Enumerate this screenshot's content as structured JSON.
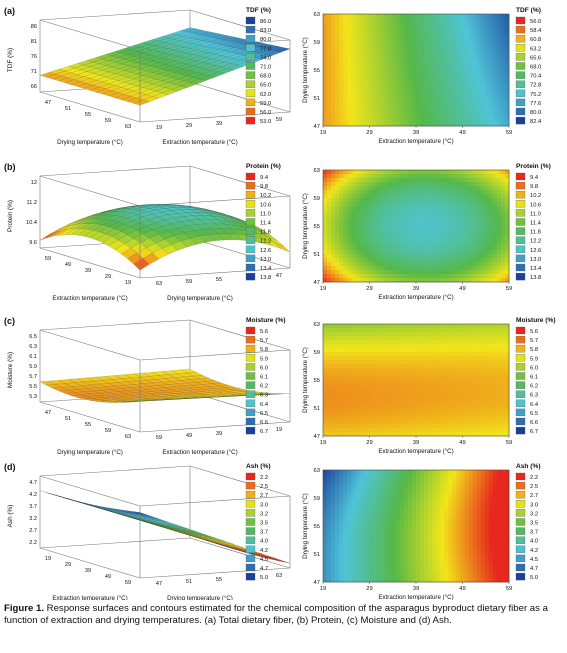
{
  "caption": {
    "label": "Figure 1.",
    "text": "Response surfaces and contours estimated for the chemical composition of the asparagus byproduct dietary fiber as a function of extraction and drying temperatures. (a) Total dietary fiber, (b) Protein, (c) Moisture and (d) Ash."
  },
  "panels": [
    {
      "id": "a",
      "label": "(a)",
      "response": "TDF (%)",
      "surface_axes": {
        "z_label": "TDF (%)",
        "z_ticks": [
          "86",
          "81",
          "76",
          "71",
          "66"
        ],
        "front_left_label": "Drying temperature (°C)",
        "front_left_ticks": [
          "47",
          "51",
          "55",
          "59",
          "63"
        ],
        "front_right_label": "Extraction temperature (°C)",
        "front_right_ticks": [
          "19",
          "29",
          "39",
          "49",
          "59"
        ]
      },
      "surface_legend": {
        "title": "TDF (%)",
        "levels": [
          "86.0",
          "83.0",
          "80.0",
          "77.0",
          "74.0",
          "71.0",
          "68.0",
          "65.0",
          "62.0",
          "59.0",
          "56.0",
          "53.0"
        ]
      },
      "contour": {
        "x_label": "Extraction temperature (°C)",
        "x_ticks": [
          "19",
          "29",
          "39",
          "49",
          "59"
        ],
        "y_label": "Drying temperature (°C)",
        "y_ticks": [
          "63",
          "59",
          "55",
          "51",
          "47"
        ]
      },
      "contour_legend": {
        "title": "TDF (%)",
        "levels": [
          "56.0",
          "58.4",
          "60.8",
          "63.2",
          "65.6",
          "68.0",
          "70.4",
          "72.8",
          "75.2",
          "77.6",
          "80.0",
          "82.4"
        ]
      }
    },
    {
      "id": "b",
      "label": "(b)",
      "response": "Protein (%)",
      "surface_axes": {
        "z_label": "Protein (%)",
        "z_ticks": [
          "12",
          "11.2",
          "10.4",
          "9.6"
        ],
        "front_left_label": "Extraction temperature (°C)",
        "front_left_ticks": [
          "59",
          "49",
          "39",
          "29",
          "19"
        ],
        "front_right_label": "Drying temperature (°C)",
        "front_right_ticks": [
          "63",
          "59",
          "55",
          "51",
          "47"
        ]
      },
      "surface_legend": {
        "title": "Protein (%)",
        "levels": [
          "9.4",
          "9.8",
          "10.2",
          "10.6",
          "11.0",
          "11.4",
          "11.8",
          "12.2",
          "12.6",
          "13.0",
          "13.4",
          "13.8"
        ]
      },
      "contour": {
        "x_label": "Extraction temperature (°C)",
        "x_ticks": [
          "19",
          "29",
          "39",
          "49",
          "59"
        ],
        "y_label": "Drying temperature (°C)",
        "y_ticks": [
          "63",
          "59",
          "55",
          "51",
          "47"
        ]
      },
      "contour_legend": {
        "title": "Protein (%)",
        "levels": [
          "9.4",
          "9.8",
          "10.2",
          "10.6",
          "11.0",
          "11.4",
          "11.8",
          "12.2",
          "12.6",
          "13.0",
          "13.4",
          "13.8"
        ]
      }
    },
    {
      "id": "c",
      "label": "(c)",
      "response": "Moisture (%)",
      "surface_axes": {
        "z_label": "Moisture (%)",
        "z_ticks": [
          "6.5",
          "6.3",
          "6.1",
          "5.9",
          "5.7",
          "5.5",
          "5.3"
        ],
        "front_left_label": "Drying temperature (°C)",
        "front_left_ticks": [
          "47",
          "51",
          "55",
          "59",
          "63"
        ],
        "front_right_label": "Extraction temperature (°C)",
        "front_right_ticks": [
          "59",
          "49",
          "39",
          "29",
          "19"
        ]
      },
      "surface_legend": {
        "title": "Moisture (%)",
        "levels": [
          "5.6",
          "5.7",
          "5.8",
          "5.9",
          "6.0",
          "6.1",
          "6.2",
          "6.3",
          "6.4",
          "6.5",
          "6.6",
          "6.7"
        ]
      },
      "contour": {
        "x_label": "Extraction temperature (°C)",
        "x_ticks": [
          "19",
          "29",
          "39",
          "49",
          "59"
        ],
        "y_label": "Drying temperature (°C)",
        "y_ticks": [
          "63",
          "59",
          "55",
          "51",
          "47"
        ]
      },
      "contour_legend": {
        "title": "Moisture (%)",
        "levels": [
          "5.6",
          "5.7",
          "5.8",
          "5.9",
          "6.0",
          "6.1",
          "6.2",
          "6.3",
          "6.4",
          "6.5",
          "6.6",
          "6.7"
        ]
      }
    },
    {
      "id": "d",
      "label": "(d)",
      "response": "Ash (%)",
      "surface_axes": {
        "z_label": "Ash (%)",
        "z_ticks": [
          "4.7",
          "4.2",
          "3.7",
          "3.2",
          "2.7",
          "2.2"
        ],
        "front_left_label": "Extraction temperature (°C)",
        "front_left_ticks": [
          "19",
          "29",
          "39",
          "49",
          "59"
        ],
        "front_right_label": "Drying temperature (°C)",
        "front_right_ticks": [
          "47",
          "51",
          "55",
          "59",
          "63"
        ]
      },
      "surface_legend": {
        "title": "Ash (%)",
        "levels": [
          "2.2",
          "2.5",
          "2.7",
          "3.0",
          "3.2",
          "3.5",
          "3.7",
          "4.0",
          "4.2",
          "4.5",
          "4.7",
          "5.0"
        ]
      },
      "contour": {
        "x_label": "Extraction temperature (°C)",
        "x_ticks": [
          "19",
          "29",
          "39",
          "49",
          "59"
        ],
        "y_label": "Drying temperature (°C)",
        "y_ticks": [
          "63",
          "59",
          "55",
          "51",
          "47"
        ]
      },
      "contour_legend": {
        "title": "Ash (%)",
        "levels": [
          "2.2",
          "2.5",
          "2.7",
          "3.0",
          "3.2",
          "3.5",
          "3.7",
          "4.0",
          "4.2",
          "4.5",
          "4.7",
          "5.0"
        ]
      }
    }
  ],
  "colors": {
    "ramp_low": "#e8281e",
    "ramp_mid_low": "#f2e61a",
    "ramp_mid": "#54b848",
    "ramp_mid_high": "#4fc4d8",
    "ramp_high": "#1b3f9c"
  }
}
